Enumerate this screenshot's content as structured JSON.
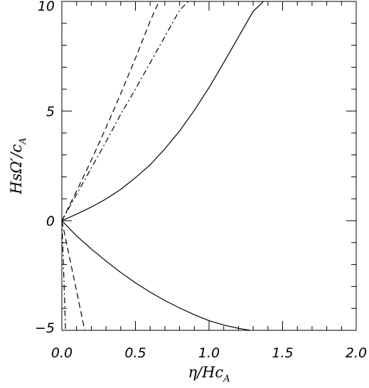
{
  "chart_data": {
    "type": "line",
    "title": "",
    "xlabel": {
      "main": "η/Hc",
      "sub": "A"
    },
    "ylabel": {
      "main": "HsΩ′/c",
      "sub": "A"
    },
    "xlim": [
      0,
      2
    ],
    "ylim": [
      -5,
      10
    ],
    "x_ticks": [
      {
        "value": 0.0,
        "label": "0.0"
      },
      {
        "value": 0.5,
        "label": "0.5"
      },
      {
        "value": 1.0,
        "label": "1.0"
      },
      {
        "value": 1.5,
        "label": "1.5"
      },
      {
        "value": 2.0,
        "label": "2.0"
      }
    ],
    "y_ticks": [
      {
        "value": -5,
        "label": "−5"
      },
      {
        "value": 0,
        "label": "0"
      },
      {
        "value": 5,
        "label": "5"
      },
      {
        "value": 10,
        "label": "10"
      }
    ],
    "x_minor_step": 0.1,
    "y_minor_step": 1,
    "grid": false,
    "series": [
      {
        "style": "solid",
        "x": [
          0,
          0.1,
          0.2,
          0.3,
          0.4,
          0.5,
          0.6,
          0.7,
          0.8,
          0.9,
          1.0,
          1.1,
          1.2,
          1.3,
          1.37
        ],
        "y": [
          0,
          0.3,
          0.62,
          0.99,
          1.43,
          1.96,
          2.55,
          3.28,
          4.09,
          5.03,
          6.07,
          7.21,
          8.38,
          9.55,
          10
        ]
      },
      {
        "style": "solid",
        "x": [
          0,
          0.1,
          0.2,
          0.3,
          0.4,
          0.5,
          0.6,
          0.7,
          0.8,
          0.9,
          1.0,
          1.1,
          1.2,
          1.28
        ],
        "y": [
          0,
          -0.69,
          -1.29,
          -1.84,
          -2.36,
          -2.83,
          -3.26,
          -3.64,
          -3.98,
          -4.29,
          -4.56,
          -4.76,
          -4.91,
          -5
        ]
      },
      {
        "style": "dashed",
        "x": [
          0,
          0.1,
          0.2,
          0.3,
          0.4,
          0.5,
          0.6,
          0.66
        ],
        "y": [
          0,
          1.35,
          2.76,
          4.24,
          5.79,
          7.41,
          9.1,
          10
        ]
      },
      {
        "style": "dashed",
        "x": [
          0,
          0.05,
          0.1,
          0.155
        ],
        "y": [
          0,
          -1.6,
          -3.2,
          -5
        ]
      },
      {
        "style": "dashdot",
        "x": [
          0,
          0.1,
          0.2,
          0.3,
          0.4,
          0.5,
          0.6,
          0.7,
          0.8,
          0.86
        ],
        "y": [
          0,
          1.2,
          2.4,
          3.6,
          4.85,
          6.0,
          7.2,
          8.4,
          9.6,
          10
        ]
      },
      {
        "style": "dashdot",
        "x": [
          0,
          0.01,
          0.02,
          0.025
        ],
        "y": [
          0,
          -1.9,
          -3.9,
          -5
        ]
      }
    ]
  }
}
